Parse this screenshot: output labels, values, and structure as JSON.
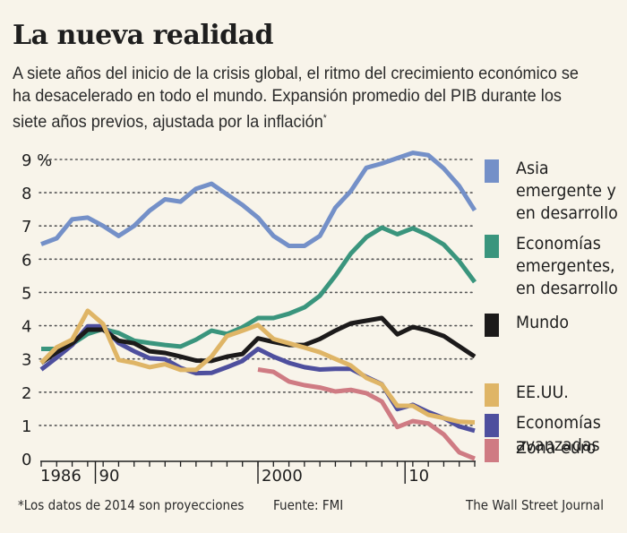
{
  "header": {
    "title": "La nueva realidad",
    "subtitle": "A siete años del inicio de la crisis global, el ritmo del crecimiento económico se ha desacelerado en todo el mundo. Expansión promedio del PIB durante los siete años previos, ajustada por la inflación",
    "subtitle_mark": "*"
  },
  "footer": {
    "note": "*Los datos de 2014 son proyecciones",
    "source": "Fuente: FMI",
    "credit": "The Wall Street Journal"
  },
  "chart_data": {
    "type": "line",
    "title": "La nueva realidad",
    "xlabel": "",
    "ylabel": "%",
    "x": [
      1986,
      1987,
      1988,
      1989,
      1990,
      1991,
      1992,
      1993,
      1994,
      1995,
      1996,
      1997,
      1998,
      1999,
      2000,
      2001,
      2002,
      2003,
      2004,
      2005,
      2006,
      2007,
      2008,
      2009,
      2010,
      2011,
      2012,
      2013,
      2014
    ],
    "xlim": [
      1986,
      2014
    ],
    "ylim": [
      0,
      9
    ],
    "y_ticks": [
      {
        "value": 0,
        "label": "0"
      },
      {
        "value": 1,
        "label": "1"
      },
      {
        "value": 2,
        "label": "2"
      },
      {
        "value": 3,
        "label": "3"
      },
      {
        "value": 4,
        "label": "4"
      },
      {
        "value": 5,
        "label": "5"
      },
      {
        "value": 6,
        "label": "6"
      },
      {
        "value": 7,
        "label": "7"
      },
      {
        "value": 8,
        "label": "8"
      },
      {
        "value": 9,
        "label": "9 %"
      }
    ],
    "x_major_ticks": [
      {
        "value": 1986,
        "label": "1986",
        "major": false
      },
      {
        "value": 1989.5,
        "label": "90",
        "major": true
      },
      {
        "value": 2000,
        "label": "2000",
        "major": true
      },
      {
        "value": 2009.5,
        "label": "10",
        "major": true
      }
    ],
    "grid": "horizontal dotted",
    "legend_position": "right",
    "series": [
      {
        "name": "Asia emergente y en desarrollo",
        "label": "Asia\nemergente y\nen desarrollo",
        "color": "#7490c8",
        "values": [
          6.45,
          6.63,
          7.2,
          7.25,
          7.0,
          6.7,
          7.0,
          7.46,
          7.8,
          7.73,
          8.12,
          8.27,
          7.95,
          7.63,
          7.25,
          6.7,
          6.4,
          6.4,
          6.7,
          7.55,
          8.05,
          8.75,
          8.88,
          9.04,
          9.2,
          9.13,
          8.73,
          8.2,
          7.47
        ]
      },
      {
        "name": "Economías emergentes, en desarrollo",
        "label": "Economías\nemergentes,\nen desarrollo",
        "color": "#3a957d",
        "values": [
          3.3,
          3.3,
          3.45,
          3.75,
          3.9,
          3.78,
          3.55,
          3.48,
          3.42,
          3.37,
          3.58,
          3.85,
          3.75,
          3.95,
          4.23,
          4.23,
          4.36,
          4.55,
          4.9,
          5.5,
          6.17,
          6.66,
          6.95,
          6.75,
          6.93,
          6.72,
          6.44,
          5.94,
          5.31
        ]
      },
      {
        "name": "Mundo",
        "label": "Mundo",
        "color": "#1c1a1a",
        "values": [
          2.88,
          3.2,
          3.47,
          3.88,
          3.88,
          3.55,
          3.47,
          3.23,
          3.18,
          3.07,
          2.95,
          2.94,
          3.07,
          3.15,
          3.62,
          3.51,
          3.42,
          3.42,
          3.6,
          3.85,
          4.07,
          4.15,
          4.23,
          3.74,
          3.96,
          3.85,
          3.69,
          3.38,
          3.07
        ]
      },
      {
        "name": "EE.UU.",
        "label": "EE.UU.",
        "color": "#dfb566",
        "values": [
          2.88,
          3.35,
          3.58,
          4.45,
          4.05,
          2.97,
          2.88,
          2.75,
          2.84,
          2.67,
          2.67,
          3.07,
          3.69,
          3.85,
          4.02,
          3.6,
          3.47,
          3.34,
          3.2,
          3.0,
          2.8,
          2.43,
          2.23,
          1.59,
          1.59,
          1.32,
          1.22,
          1.11,
          1.09
        ]
      },
      {
        "name": "Economías avanzadas",
        "label": "Economías\navanzadas",
        "color": "#4e4f9e",
        "values": [
          2.68,
          3.04,
          3.42,
          3.98,
          3.98,
          3.48,
          3.23,
          3.02,
          2.99,
          2.73,
          2.57,
          2.58,
          2.75,
          2.94,
          3.3,
          3.07,
          2.88,
          2.75,
          2.68,
          2.7,
          2.7,
          2.46,
          2.24,
          1.49,
          1.62,
          1.4,
          1.22,
          0.97,
          0.84
        ]
      },
      {
        "name": "Zona euro",
        "label": "Zona euro",
        "color": "#cf7b83",
        "values": [
          null,
          null,
          null,
          null,
          null,
          null,
          null,
          null,
          null,
          null,
          null,
          null,
          null,
          null,
          2.68,
          2.61,
          2.32,
          2.21,
          2.14,
          2.02,
          2.07,
          1.97,
          1.72,
          0.95,
          1.13,
          1.06,
          0.73,
          0.19,
          0.0
        ]
      }
    ]
  }
}
